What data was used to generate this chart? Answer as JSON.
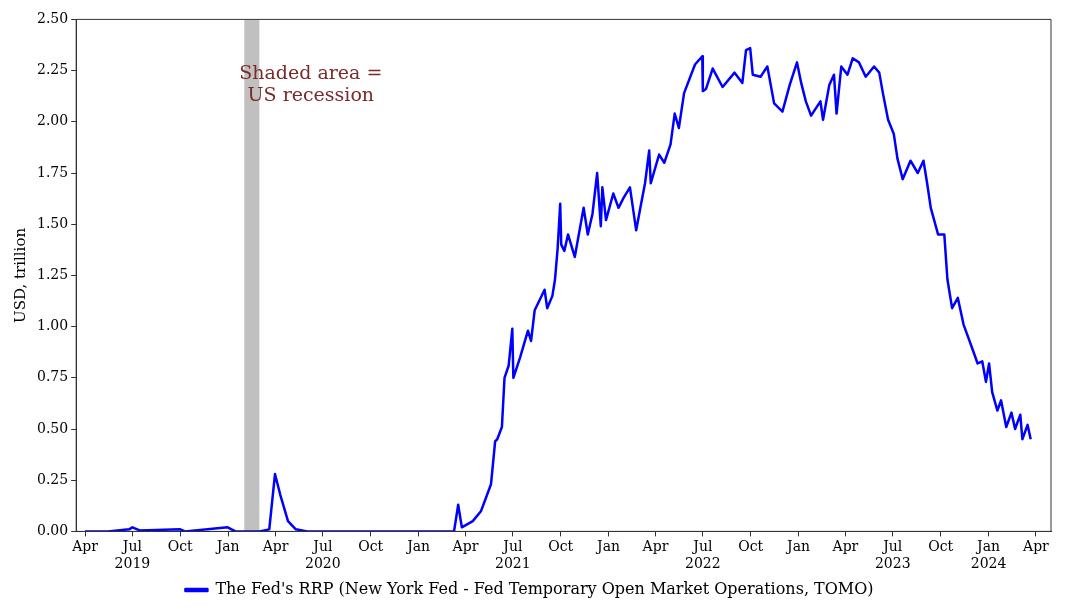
{
  "chart_data": {
    "type": "line",
    "ylabel": "USD, trillion",
    "x": [
      "2019-04-01",
      "2019-05-15",
      "2019-06-25",
      "2019-07-01",
      "2019-07-15",
      "2019-10-01",
      "2019-10-10",
      "2019-12-31",
      "2020-01-15",
      "2020-03-01",
      "2020-03-20",
      "2020-03-31",
      "2020-04-10",
      "2020-04-25",
      "2020-05-10",
      "2020-06-01",
      "2021-02-01",
      "2021-03-10",
      "2021-03-18",
      "2021-03-25",
      "2021-04-15",
      "2021-05-01",
      "2021-05-20",
      "2021-05-28",
      "2021-06-01",
      "2021-06-10",
      "2021-06-15",
      "2021-06-23",
      "2021-06-30",
      "2021-07-02",
      "2021-07-15",
      "2021-07-30",
      "2021-08-05",
      "2021-08-12",
      "2021-08-31",
      "2021-09-05",
      "2021-09-15",
      "2021-09-20",
      "2021-09-25",
      "2021-09-30",
      "2021-10-02",
      "2021-10-08",
      "2021-10-15",
      "2021-10-28",
      "2021-11-14",
      "2021-11-22",
      "2021-12-01",
      "2021-12-10",
      "2021-12-17",
      "2021-12-20",
      "2021-12-27",
      "2022-01-10",
      "2022-01-20",
      "2022-01-30",
      "2022-02-11",
      "2022-02-23",
      "2022-03-03",
      "2022-03-12",
      "2022-03-20",
      "2022-03-23",
      "2022-04-08",
      "2022-04-18",
      "2022-04-30",
      "2022-05-08",
      "2022-05-16",
      "2022-05-26",
      "2022-06-16",
      "2022-06-30",
      "2022-07-01",
      "2022-07-07",
      "2022-07-20",
      "2022-08-08",
      "2022-08-31",
      "2022-09-15",
      "2022-09-22",
      "2022-09-30",
      "2022-10-05",
      "2022-10-20",
      "2022-11-02",
      "2022-11-15",
      "2022-12-01",
      "2022-12-15",
      "2022-12-29",
      "2023-01-06",
      "2023-01-15",
      "2023-01-25",
      "2023-02-12",
      "2023-02-17",
      "2023-03-01",
      "2023-03-10",
      "2023-03-15",
      "2023-03-24",
      "2023-04-05",
      "2023-04-15",
      "2023-04-27",
      "2023-05-10",
      "2023-05-26",
      "2023-06-05",
      "2023-06-12",
      "2023-06-22",
      "2023-07-03",
      "2023-07-10",
      "2023-07-20",
      "2023-08-04",
      "2023-08-18",
      "2023-08-29",
      "2023-09-05",
      "2023-09-12",
      "2023-09-26",
      "2023-10-08",
      "2023-10-14",
      "2023-10-23",
      "2023-11-03",
      "2023-11-14",
      "2023-11-24",
      "2023-12-04",
      "2023-12-11",
      "2023-12-20",
      "2023-12-27",
      "2024-01-02",
      "2024-01-08",
      "2024-01-18",
      "2024-01-25",
      "2024-02-04",
      "2024-02-14",
      "2024-02-21",
      "2024-03-02",
      "2024-03-06",
      "2024-03-16",
      "2024-03-22"
    ],
    "series": [
      {
        "name": "The Fed's RRP (New York Fed - Fed Temporary Open Market Operations, TOMO)",
        "color": "#0000ff",
        "values": [
          0.0,
          0.0,
          0.01,
          0.02,
          0.005,
          0.01,
          0.0,
          0.02,
          0.0,
          0.0,
          0.01,
          0.28,
          0.18,
          0.05,
          0.01,
          0.0,
          0.0,
          0.0,
          0.13,
          0.02,
          0.05,
          0.1,
          0.23,
          0.44,
          0.45,
          0.51,
          0.75,
          0.81,
          0.99,
          0.75,
          0.85,
          0.98,
          0.93,
          1.08,
          1.18,
          1.09,
          1.15,
          1.23,
          1.38,
          1.6,
          1.4,
          1.37,
          1.45,
          1.34,
          1.58,
          1.45,
          1.55,
          1.75,
          1.49,
          1.68,
          1.52,
          1.65,
          1.58,
          1.63,
          1.68,
          1.47,
          1.58,
          1.7,
          1.86,
          1.7,
          1.84,
          1.8,
          1.89,
          2.04,
          1.97,
          2.14,
          2.28,
          2.32,
          2.15,
          2.16,
          2.26,
          2.17,
          2.24,
          2.19,
          2.35,
          2.36,
          2.23,
          2.22,
          2.27,
          2.09,
          2.05,
          2.18,
          2.29,
          2.19,
          2.1,
          2.03,
          2.1,
          2.01,
          2.18,
          2.23,
          2.04,
          2.27,
          2.23,
          2.31,
          2.29,
          2.22,
          2.27,
          2.24,
          2.14,
          2.01,
          1.94,
          1.82,
          1.72,
          1.81,
          1.75,
          1.81,
          1.7,
          1.58,
          1.45,
          1.45,
          1.23,
          1.09,
          1.14,
          1.01,
          0.94,
          0.87,
          0.82,
          0.83,
          0.73,
          0.82,
          0.68,
          0.59,
          0.64,
          0.51,
          0.58,
          0.5,
          0.57,
          0.45,
          0.52,
          0.45
        ]
      }
    ],
    "xlim": [
      "2019-03-15",
      "2024-04-30"
    ],
    "xticks": [
      {
        "value": "2019-04-01",
        "label": "Apr"
      },
      {
        "value": "2019-07-01",
        "label": "Jul\n2019"
      },
      {
        "value": "2019-10-01",
        "label": "Oct"
      },
      {
        "value": "2020-01-01",
        "label": "Jan"
      },
      {
        "value": "2020-04-01",
        "label": "Apr"
      },
      {
        "value": "2020-07-01",
        "label": "Jul\n2020"
      },
      {
        "value": "2020-10-01",
        "label": "Oct"
      },
      {
        "value": "2021-01-01",
        "label": "Jan"
      },
      {
        "value": "2021-04-01",
        "label": "Apr"
      },
      {
        "value": "2021-07-01",
        "label": "Jul\n2021"
      },
      {
        "value": "2021-10-01",
        "label": "Oct"
      },
      {
        "value": "2022-01-01",
        "label": "Jan"
      },
      {
        "value": "2022-04-01",
        "label": "Apr"
      },
      {
        "value": "2022-07-01",
        "label": "Jul\n2022"
      },
      {
        "value": "2022-10-01",
        "label": "Oct"
      },
      {
        "value": "2023-01-01",
        "label": "Jan"
      },
      {
        "value": "2023-04-01",
        "label": "Apr"
      },
      {
        "value": "2023-07-01",
        "label": "Jul\n2023"
      },
      {
        "value": "2023-10-01",
        "label": "Oct"
      },
      {
        "value": "2024-01-01",
        "label": "Jan\n2024"
      },
      {
        "value": "2024-04-01",
        "label": "Apr"
      }
    ],
    "ylim": [
      0,
      2.5
    ],
    "yticks": [
      {
        "value": 0,
        "label": "0.00"
      },
      {
        "value": 0.25,
        "label": "0.25"
      },
      {
        "value": 0.5,
        "label": "0.50"
      },
      {
        "value": 0.75,
        "label": "0.75"
      },
      {
        "value": 1,
        "label": "1.00"
      },
      {
        "value": 1.25,
        "label": "1.25"
      },
      {
        "value": 1.5,
        "label": "1.50"
      },
      {
        "value": 1.75,
        "label": "1.75"
      },
      {
        "value": 2,
        "label": "2.00"
      },
      {
        "value": 2.25,
        "label": "2.25"
      },
      {
        "value": 2.5,
        "label": "2.50"
      }
    ],
    "bands": [
      {
        "axis": "x",
        "from": "2020-02-01",
        "to": "2020-03-01",
        "label": "Shaded area = US recession",
        "color": "#c0c0c0"
      }
    ],
    "grid": false,
    "legend": "bottom",
    "marker": "none",
    "line_style": "solid"
  }
}
